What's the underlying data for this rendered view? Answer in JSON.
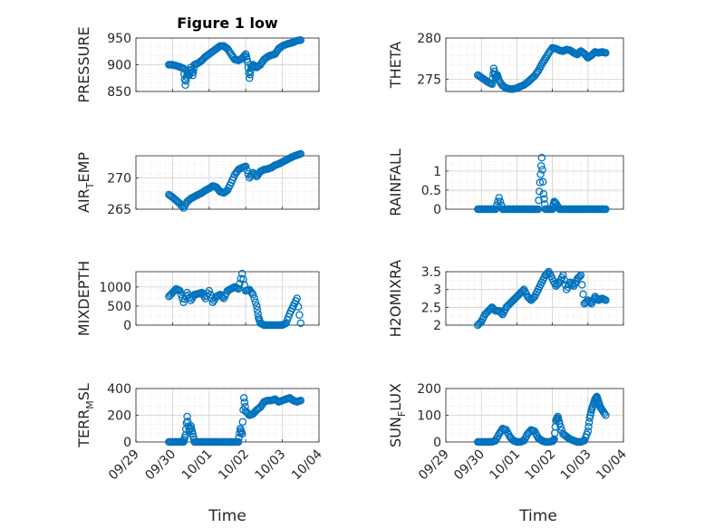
{
  "figure": {
    "title": "Figure 1 low",
    "xlabel": "Time"
  },
  "chart_data": [
    {
      "type": "scatter",
      "title": "Figure 1 low",
      "ylabel": "PRESSURE",
      "ylim": [
        850,
        950
      ],
      "yticks": [
        850,
        900,
        950
      ],
      "xlim": [
        0,
        5
      ],
      "x": [
        0.9,
        1.0,
        1.1,
        1.2,
        1.3,
        1.35,
        1.4,
        1.45,
        1.5,
        1.55,
        1.6,
        1.7,
        1.8,
        1.9,
        2.0,
        2.1,
        2.2,
        2.3,
        2.4,
        2.5,
        2.6,
        2.7,
        2.8,
        2.9,
        3.0,
        3.05,
        3.1,
        3.15,
        3.2,
        3.3,
        3.4,
        3.5,
        3.6,
        3.7,
        3.8,
        3.9,
        4.0,
        4.1,
        4.2,
        4.3,
        4.4,
        4.5
      ],
      "y": [
        900,
        900,
        898,
        896,
        893,
        862,
        885,
        880,
        895,
        880,
        900,
        903,
        908,
        915,
        920,
        925,
        930,
        935,
        935,
        930,
        920,
        910,
        908,
        912,
        920,
        905,
        875,
        895,
        900,
        895,
        900,
        910,
        915,
        918,
        920,
        930,
        935,
        938,
        940,
        942,
        945,
        946
      ]
    },
    {
      "type": "scatter",
      "ylabel": "THETA",
      "ylim": [
        273.5,
        280
      ],
      "yticks": [
        275,
        280
      ],
      "xlim": [
        0,
        5
      ],
      "x": [
        0.9,
        1.0,
        1.1,
        1.2,
        1.3,
        1.35,
        1.4,
        1.45,
        1.5,
        1.6,
        1.7,
        1.8,
        1.9,
        2.0,
        2.1,
        2.2,
        2.3,
        2.4,
        2.5,
        2.6,
        2.7,
        2.8,
        2.9,
        3.0,
        3.1,
        3.2,
        3.3,
        3.4,
        3.5,
        3.6,
        3.7,
        3.8,
        3.9,
        4.0,
        4.1,
        4.2,
        4.3,
        4.4,
        4.5
      ],
      "y": [
        275.5,
        275.2,
        274.9,
        274.6,
        274.4,
        276.3,
        275.2,
        275.5,
        274.8,
        274.2,
        273.9,
        273.8,
        273.8,
        273.9,
        274.1,
        274.3,
        274.6,
        275,
        275.4,
        276,
        276.8,
        277.5,
        278.2,
        278.8,
        278.7,
        278.5,
        278.4,
        278.6,
        278.5,
        278.2,
        278.0,
        278.4,
        278.1,
        277.6,
        277.9,
        278.3,
        278.2,
        278.3,
        278.2
      ]
    },
    {
      "type": "scatter",
      "ylabel": "AIR_TEMP",
      "ylim": [
        265,
        273.5
      ],
      "yticks": [
        265,
        270
      ],
      "xlim": [
        0,
        5
      ],
      "x": [
        0.9,
        1.0,
        1.1,
        1.2,
        1.3,
        1.4,
        1.5,
        1.6,
        1.7,
        1.8,
        1.9,
        2.0,
        2.1,
        2.2,
        2.3,
        2.4,
        2.5,
        2.6,
        2.7,
        2.8,
        2.9,
        3.0,
        3.1,
        3.2,
        3.3,
        3.4,
        3.5,
        3.6,
        3.7,
        3.8,
        3.9,
        4.0,
        4.1,
        4.2,
        4.3,
        4.4,
        4.5
      ],
      "y": [
        267.3,
        266.9,
        266.4,
        265.9,
        265.2,
        266.2,
        266.7,
        267.0,
        267.3,
        267.6,
        268.0,
        268.3,
        268.7,
        268.5,
        267.8,
        267.6,
        268.0,
        269.2,
        270.5,
        271.3,
        271.6,
        271.8,
        270.0,
        270.8,
        270.2,
        271,
        271.3,
        271.4,
        271.6,
        272.0,
        272.2,
        272.5,
        272.8,
        273.1,
        273.4,
        273.6,
        273.8
      ]
    },
    {
      "type": "scatter",
      "ylabel": "RAINFALL",
      "ylim": [
        0,
        1.4
      ],
      "yticks": [
        0,
        0.5,
        1
      ],
      "xlim": [
        0,
        5
      ],
      "x": [
        0.9,
        1.0,
        1.1,
        1.2,
        1.3,
        1.4,
        1.5,
        1.6,
        1.7,
        1.8,
        1.9,
        2.0,
        2.1,
        2.2,
        2.3,
        2.4,
        2.5,
        2.6,
        2.65,
        2.7,
        2.75,
        2.8,
        2.9,
        3.0,
        3.05,
        3.1,
        3.2,
        3.3,
        3.4,
        3.5,
        3.6,
        3.7,
        3.8,
        3.9,
        4.0,
        4.1,
        4.2,
        4.3,
        4.4,
        4.5
      ],
      "y": [
        0,
        0,
        0,
        0,
        0,
        0,
        0.3,
        0,
        0,
        0,
        0,
        0,
        0,
        0,
        0,
        0,
        0,
        0,
        0.7,
        1.35,
        0.4,
        0,
        0,
        0,
        0.2,
        0.15,
        0,
        0,
        0,
        0,
        0,
        0,
        0,
        0,
        0,
        0,
        0,
        0,
        0,
        0
      ]
    },
    {
      "type": "scatter",
      "ylabel": "MIXDEPTH",
      "ylim": [
        0,
        1400
      ],
      "yticks": [
        0,
        500,
        1000
      ],
      "xlim": [
        0,
        5
      ],
      "x": [
        0.9,
        1.0,
        1.1,
        1.2,
        1.3,
        1.4,
        1.5,
        1.6,
        1.7,
        1.8,
        1.9,
        2.0,
        2.1,
        2.2,
        2.3,
        2.4,
        2.5,
        2.6,
        2.7,
        2.8,
        2.9,
        3.0,
        3.1,
        3.2,
        3.3,
        3.35,
        3.4,
        3.5,
        3.6,
        3.7,
        3.8,
        3.9,
        4.0,
        4.1,
        4.2,
        4.3,
        4.4,
        4.5
      ],
      "y": [
        750,
        850,
        950,
        900,
        600,
        850,
        650,
        800,
        820,
        850,
        700,
        900,
        600,
        750,
        800,
        700,
        900,
        950,
        1000,
        950,
        1350,
        900,
        930,
        800,
        500,
        200,
        50,
        0,
        0,
        0,
        0,
        0,
        0,
        50,
        300,
        500,
        700,
        50
      ]
    },
    {
      "type": "scatter",
      "ylabel": "H2OMIXRA",
      "ylim": [
        2,
        3.5
      ],
      "yticks": [
        2,
        2.5,
        3,
        3.5
      ],
      "xlim": [
        0,
        5
      ],
      "x": [
        0.9,
        1.0,
        1.1,
        1.2,
        1.3,
        1.4,
        1.5,
        1.6,
        1.7,
        1.8,
        1.9,
        2.0,
        2.1,
        2.2,
        2.3,
        2.4,
        2.5,
        2.6,
        2.7,
        2.8,
        2.9,
        3.0,
        3.1,
        3.2,
        3.3,
        3.4,
        3.5,
        3.6,
        3.7,
        3.8,
        3.9,
        4.0,
        4.1,
        4.2,
        4.3,
        4.4,
        4.5
      ],
      "y": [
        2.0,
        2.1,
        2.3,
        2.4,
        2.5,
        2.4,
        2.4,
        2.3,
        2.5,
        2.6,
        2.7,
        2.8,
        2.9,
        3.0,
        2.8,
        2.7,
        2.8,
        3.0,
        3.2,
        3.4,
        3.5,
        3.3,
        3.1,
        3.2,
        3.4,
        3.0,
        3.2,
        3.1,
        3.3,
        3.4,
        2.6,
        2.7,
        2.6,
        2.8,
        2.7,
        2.75,
        2.7
      ]
    },
    {
      "type": "scatter",
      "ylabel": "TERR_MSL",
      "ylim": [
        0,
        400
      ],
      "yticks": [
        0,
        200,
        400
      ],
      "xlim": [
        0,
        5
      ],
      "x": [
        0.9,
        1.0,
        1.1,
        1.2,
        1.3,
        1.35,
        1.4,
        1.45,
        1.5,
        1.55,
        1.6,
        1.7,
        1.8,
        1.9,
        2.0,
        2.1,
        2.2,
        2.3,
        2.4,
        2.5,
        2.6,
        2.7,
        2.8,
        2.85,
        2.9,
        2.95,
        3.0,
        3.1,
        3.2,
        3.3,
        3.4,
        3.5,
        3.6,
        3.7,
        3.8,
        3.9,
        4.0,
        4.1,
        4.2,
        4.3,
        4.4,
        4.5
      ],
      "y": [
        0,
        0,
        0,
        0,
        0,
        50,
        190,
        80,
        120,
        60,
        0,
        0,
        0,
        0,
        0,
        0,
        0,
        0,
        0,
        0,
        0,
        0,
        0,
        100,
        60,
        330,
        230,
        200,
        210,
        240,
        260,
        300,
        310,
        310,
        320,
        300,
        310,
        320,
        330,
        310,
        300,
        310
      ]
    },
    {
      "type": "scatter",
      "ylabel": "SUN_FLUX",
      "ylim": [
        0,
        200
      ],
      "yticks": [
        0,
        100,
        200
      ],
      "xlim": [
        0,
        5
      ],
      "x": [
        0.9,
        1.0,
        1.1,
        1.2,
        1.3,
        1.4,
        1.5,
        1.6,
        1.7,
        1.8,
        1.9,
        2.0,
        2.1,
        2.2,
        2.3,
        2.4,
        2.5,
        2.6,
        2.7,
        2.8,
        2.9,
        3.0,
        3.05,
        3.1,
        3.15,
        3.2,
        3.3,
        3.4,
        3.5,
        3.6,
        3.7,
        3.8,
        3.9,
        4.0,
        4.05,
        4.1,
        4.15,
        4.2,
        4.25,
        4.3,
        4.35,
        4.4,
        4.5
      ],
      "y": [
        0,
        0,
        0,
        0,
        0,
        5,
        30,
        50,
        45,
        20,
        5,
        0,
        0,
        5,
        30,
        45,
        40,
        15,
        5,
        0,
        0,
        2,
        10,
        80,
        95,
        70,
        30,
        20,
        10,
        5,
        0,
        0,
        5,
        40,
        90,
        120,
        140,
        160,
        170,
        150,
        130,
        120,
        100
      ]
    }
  ],
  "xaxis": {
    "ticklabels": [
      "09/29",
      "09/30",
      "10/01",
      "10/02",
      "10/03",
      "10/04"
    ]
  },
  "colors": {
    "marker": "#0072BD",
    "axis": "#262626",
    "grid": "#DFDFDF"
  }
}
